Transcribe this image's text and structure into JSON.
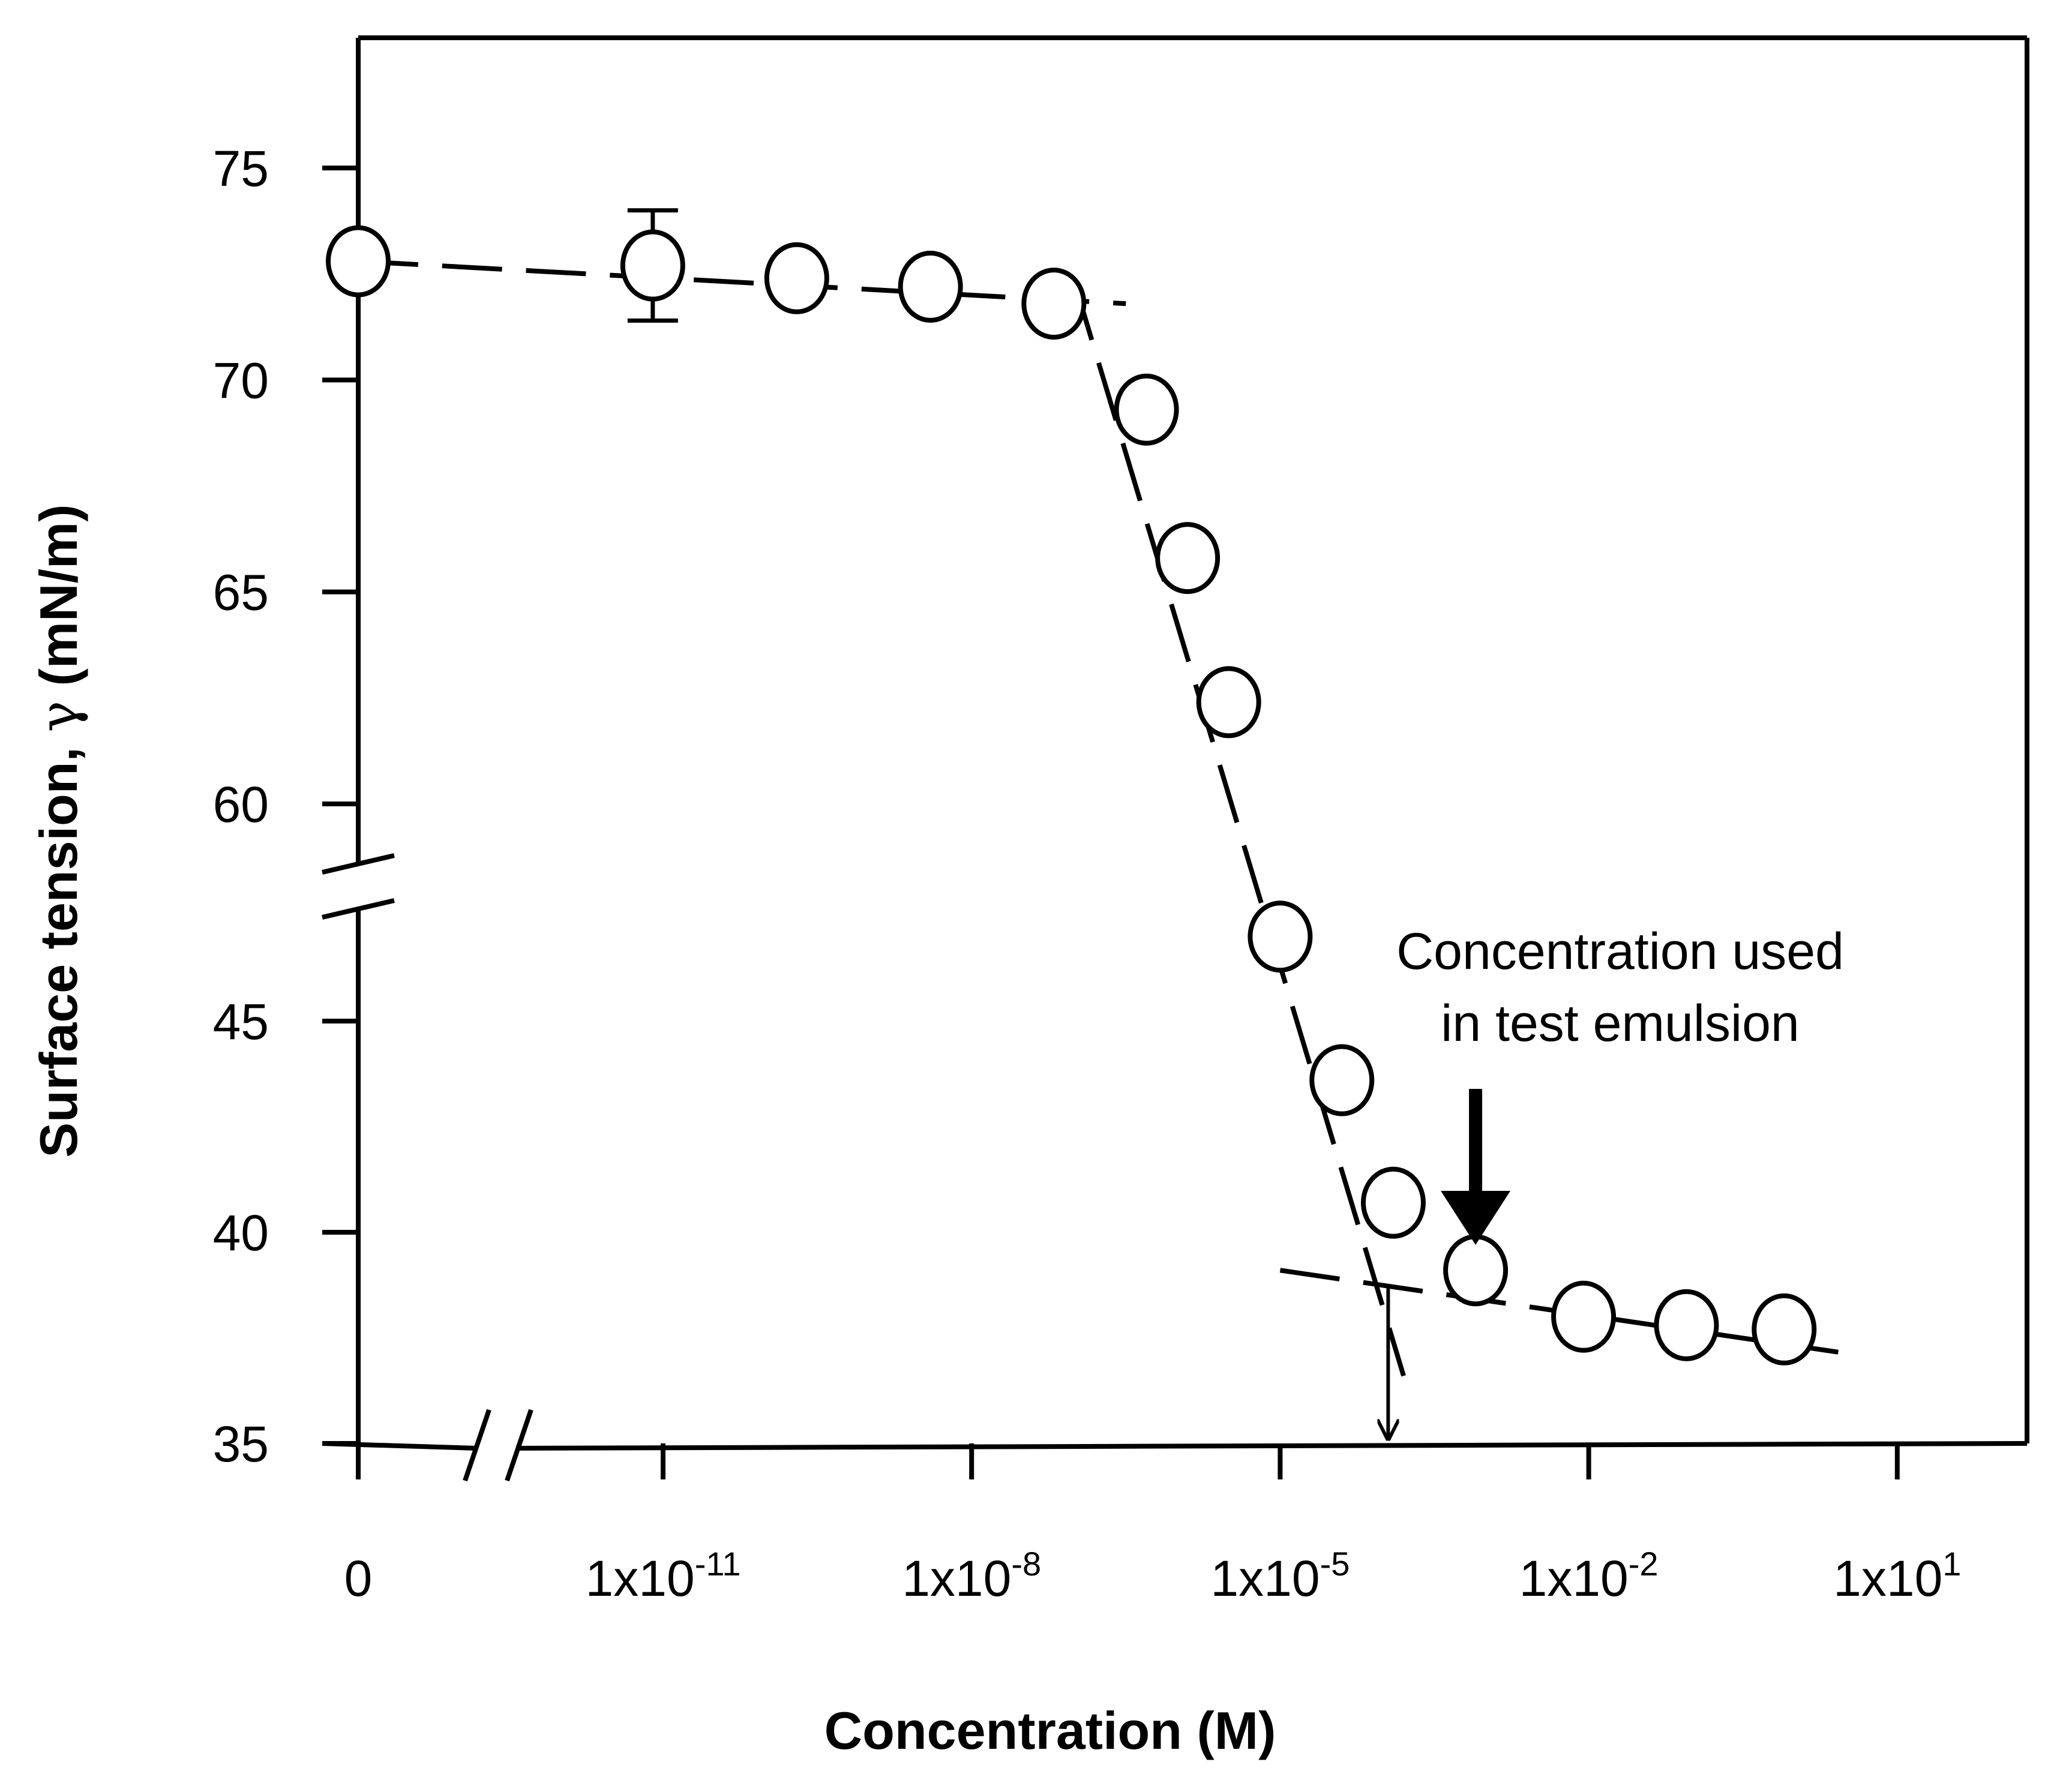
{
  "chart_data": {
    "type": "scatter",
    "title": "",
    "xlabel": "Concentration (M)",
    "ylabel_parts": [
      "Surface tension, ",
      "γ",
      " (mN/m)"
    ],
    "x_scale": "log10 with break (first point at zero concentration)",
    "x_ticks": [
      {
        "label": "0",
        "base": "0",
        "exp": ""
      },
      {
        "label": "1x10-11",
        "base": "1x10",
        "exp": "-11"
      },
      {
        "label": "1x10-8",
        "base": "1x10",
        "exp": "-8"
      },
      {
        "label": "1x10-5",
        "base": "1x10",
        "exp": "-5"
      },
      {
        "label": "1x10-2",
        "base": "1x10",
        "exp": "-2"
      },
      {
        "label": "1x101",
        "base": "1x10",
        "exp": "1"
      }
    ],
    "xlim_log10": [
      -14,
      3
    ],
    "y_ticks_upper": [
      "75",
      "70",
      "65",
      "60"
    ],
    "y_ticks_lower": [
      "45",
      "40",
      "35"
    ],
    "ylim_upper": [
      58.6,
      78
    ],
    "ylim_lower": [
      35,
      48
    ],
    "series": [
      {
        "name": "Surface tension",
        "marker": "open circle",
        "points": [
          {
            "x": "0",
            "log10_x": null,
            "y": 72.8
          },
          {
            "x": "~8x10-12",
            "log10_x": -11.1,
            "y": 72.7,
            "error": 1.3
          },
          {
            "x": "~2x10-10",
            "log10_x": -9.7,
            "y": 72.4
          },
          {
            "x": "~4x10-9",
            "log10_x": -8.4,
            "y": 72.2
          },
          {
            "x": "~6x10-8",
            "log10_x": -7.2,
            "y": 71.8
          },
          {
            "x": "~5x10-7",
            "log10_x": -6.3,
            "y": 69.3
          },
          {
            "x": "~1.3x10-6",
            "log10_x": -5.9,
            "y": 65.8
          },
          {
            "x": "~3x10-6",
            "log10_x": -5.5,
            "y": 62.4
          },
          {
            "x": "~1x10-5",
            "log10_x": -5.0,
            "y": 47.0
          },
          {
            "x": "~4x10-5",
            "log10_x": -4.4,
            "y": 43.6
          },
          {
            "x": "~1.2x10-4",
            "log10_x": -3.9,
            "y": 40.7
          },
          {
            "x": "~8x10-4",
            "log10_x": -3.1,
            "y": 39.1
          },
          {
            "x": "~9x10-3",
            "log10_x": -2.05,
            "y": 38.0
          },
          {
            "x": "~9x10-2",
            "log10_x": -1.05,
            "y": 37.8
          },
          {
            "x": "~1",
            "log10_x": -0.1,
            "y": 37.7
          }
        ]
      }
    ],
    "fit_lines": [
      {
        "name": "pre-CMC plateau",
        "from": {
          "log10_x": "zero",
          "y": 72.8
        },
        "to": {
          "log10_x": -6.5,
          "y": 71.8
        },
        "style": "dashed"
      },
      {
        "name": "descending region",
        "from": {
          "log10_x": -7.0,
          "y": 72.3
        },
        "to": {
          "log10_x": -3.8,
          "y": 36.6
        },
        "style": "dashed"
      },
      {
        "name": "post-CMC plateau",
        "from": {
          "log10_x": -5.0,
          "y": 39.1
        },
        "to": {
          "log10_x": 0.6,
          "y": 37.1
        },
        "style": "dashed"
      }
    ],
    "cmc_marker": {
      "log10_x": -3.95,
      "y_from": 38.7,
      "y_to": 35,
      "style": "thin arrow"
    },
    "annotation": {
      "text_lines": [
        "Concentration used",
        "in test emulsion"
      ],
      "points_to_log10_x": -3.1,
      "style": "thick arrow"
    }
  }
}
